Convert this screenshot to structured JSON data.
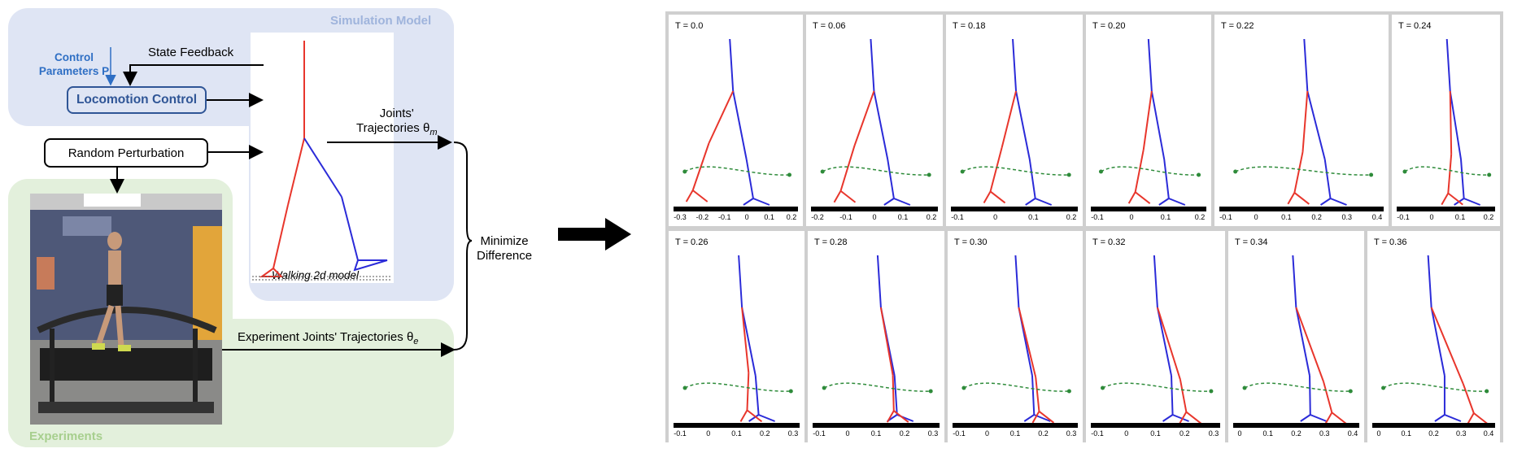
{
  "left_diagram": {
    "simulation_label": "Simulation Model",
    "experiments_label": "Experiments",
    "control_params_line1": "Control",
    "control_params_line2": "Parameters P",
    "state_feedback": "State Feedback",
    "locomotion_control": "Locomotion Control",
    "random_perturbation": "Random Perturbation",
    "joints_line1": "Joints'",
    "joints_line2": "Trajectories θ",
    "joints_sub": "m",
    "walking_model": "Walking 2d model",
    "experiment_traj": "Experiment Joints' Trajectories θ",
    "experiment_sub": "e",
    "minimize_line1": "Minimize",
    "minimize_line2": "Difference"
  },
  "colors": {
    "sim_panel": "#dfe5f4",
    "exp_panel": "#e3f0dc",
    "red_leg": "#e8362c",
    "blue_leg": "#2b2bd8",
    "trajectory": "#2e8b3a"
  },
  "frames": [
    {
      "label": "T = 0.0",
      "ticks": [
        "-0.3",
        "-0.2",
        "-0.1",
        "0",
        "0.1",
        "0.2"
      ]
    },
    {
      "label": "T = 0.06",
      "ticks": [
        "-0.2",
        "-0.1",
        "0",
        "0.1",
        "0.2"
      ]
    },
    {
      "label": "T = 0.18",
      "ticks": [
        "-0.1",
        "0",
        "0.1",
        "0.2"
      ]
    },
    {
      "label": "T = 0.20",
      "ticks": [
        "-0.1",
        "0",
        "0.1",
        "0.2"
      ]
    },
    {
      "label": "T = 0.22",
      "ticks": [
        "-0.1",
        "0",
        "0.1",
        "0.2",
        "0.3",
        "0.4"
      ]
    },
    {
      "label": "T = 0.24",
      "ticks": [
        "-0.1",
        "0",
        "0.1",
        "0.2"
      ]
    },
    {
      "label": "T = 0.26",
      "ticks": [
        "-0.1",
        "0",
        "0.1",
        "0.2",
        "0.3"
      ]
    },
    {
      "label": "T = 0.28",
      "ticks": [
        "-0.1",
        "0",
        "0.1",
        "0.2",
        "0.3"
      ]
    },
    {
      "label": "T = 0.30",
      "ticks": [
        "-0.1",
        "0",
        "0.1",
        "0.2",
        "0.3"
      ]
    },
    {
      "label": "T = 0.32",
      "ticks": [
        "-0.1",
        "0",
        "0.1",
        "0.2",
        "0.3"
      ]
    },
    {
      "label": "T = 0.34",
      "ticks": [
        "0",
        "0.1",
        "0.2",
        "0.3",
        "0.4"
      ]
    },
    {
      "label": "T = 0.36",
      "ticks": [
        "0",
        "0.1",
        "0.2",
        "0.3",
        "0.4"
      ]
    }
  ]
}
